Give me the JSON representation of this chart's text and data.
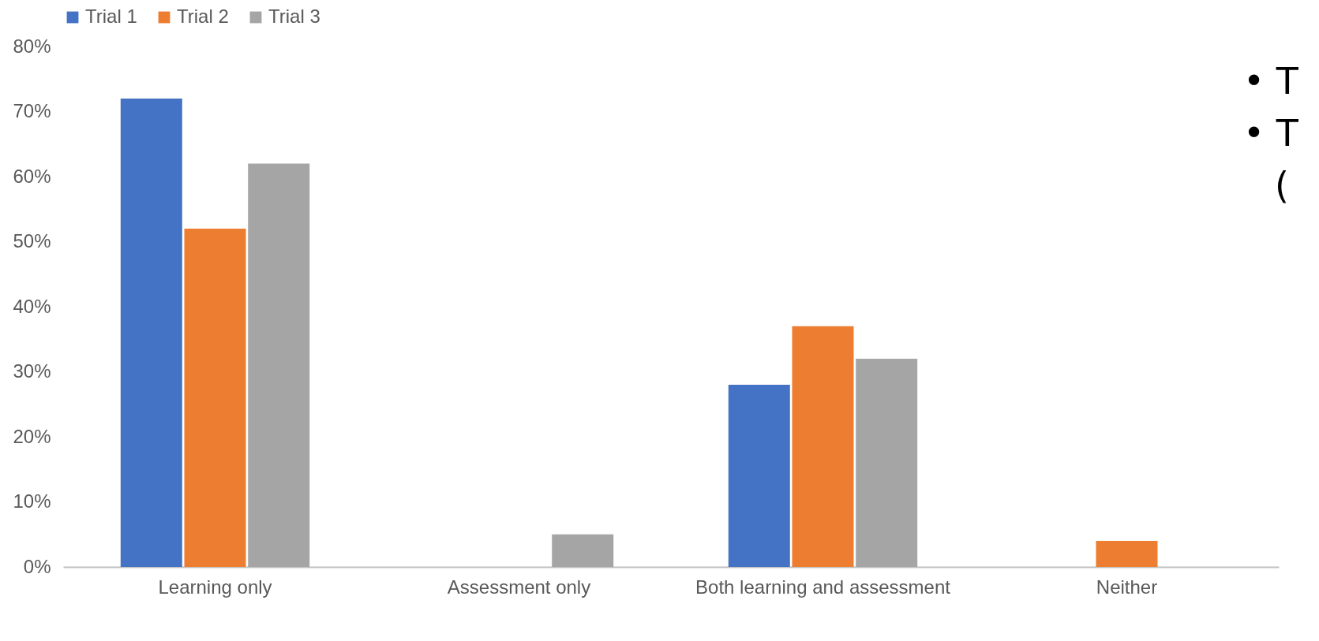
{
  "chart_data": {
    "type": "bar",
    "categories": [
      "Learning only",
      "Assessment only",
      "Both learning and assessment",
      "Neither"
    ],
    "series": [
      {
        "name": "Trial 1",
        "color": "#4472c4",
        "values": [
          72,
          0,
          28,
          0
        ]
      },
      {
        "name": "Trial 2",
        "color": "#ed7d31",
        "values": [
          52,
          0,
          37,
          4
        ]
      },
      {
        "name": "Trial 3",
        "color": "#a5a5a5",
        "values": [
          62,
          5,
          32,
          0
        ]
      }
    ],
    "ylim": [
      0,
      80
    ],
    "yticks": [
      {
        "value": 0,
        "label": "0%"
      },
      {
        "value": 10,
        "label": "10%"
      },
      {
        "value": 20,
        "label": "20%"
      },
      {
        "value": 30,
        "label": "30%"
      },
      {
        "value": 40,
        "label": "40%"
      },
      {
        "value": 50,
        "label": "50%"
      },
      {
        "value": 60,
        "label": "60%"
      },
      {
        "value": 70,
        "label": "70%"
      },
      {
        "value": 80,
        "label": "80%"
      }
    ],
    "grid": false,
    "legend": "top",
    "annotations": [
      "• T",
      "• T",
      "("
    ]
  }
}
